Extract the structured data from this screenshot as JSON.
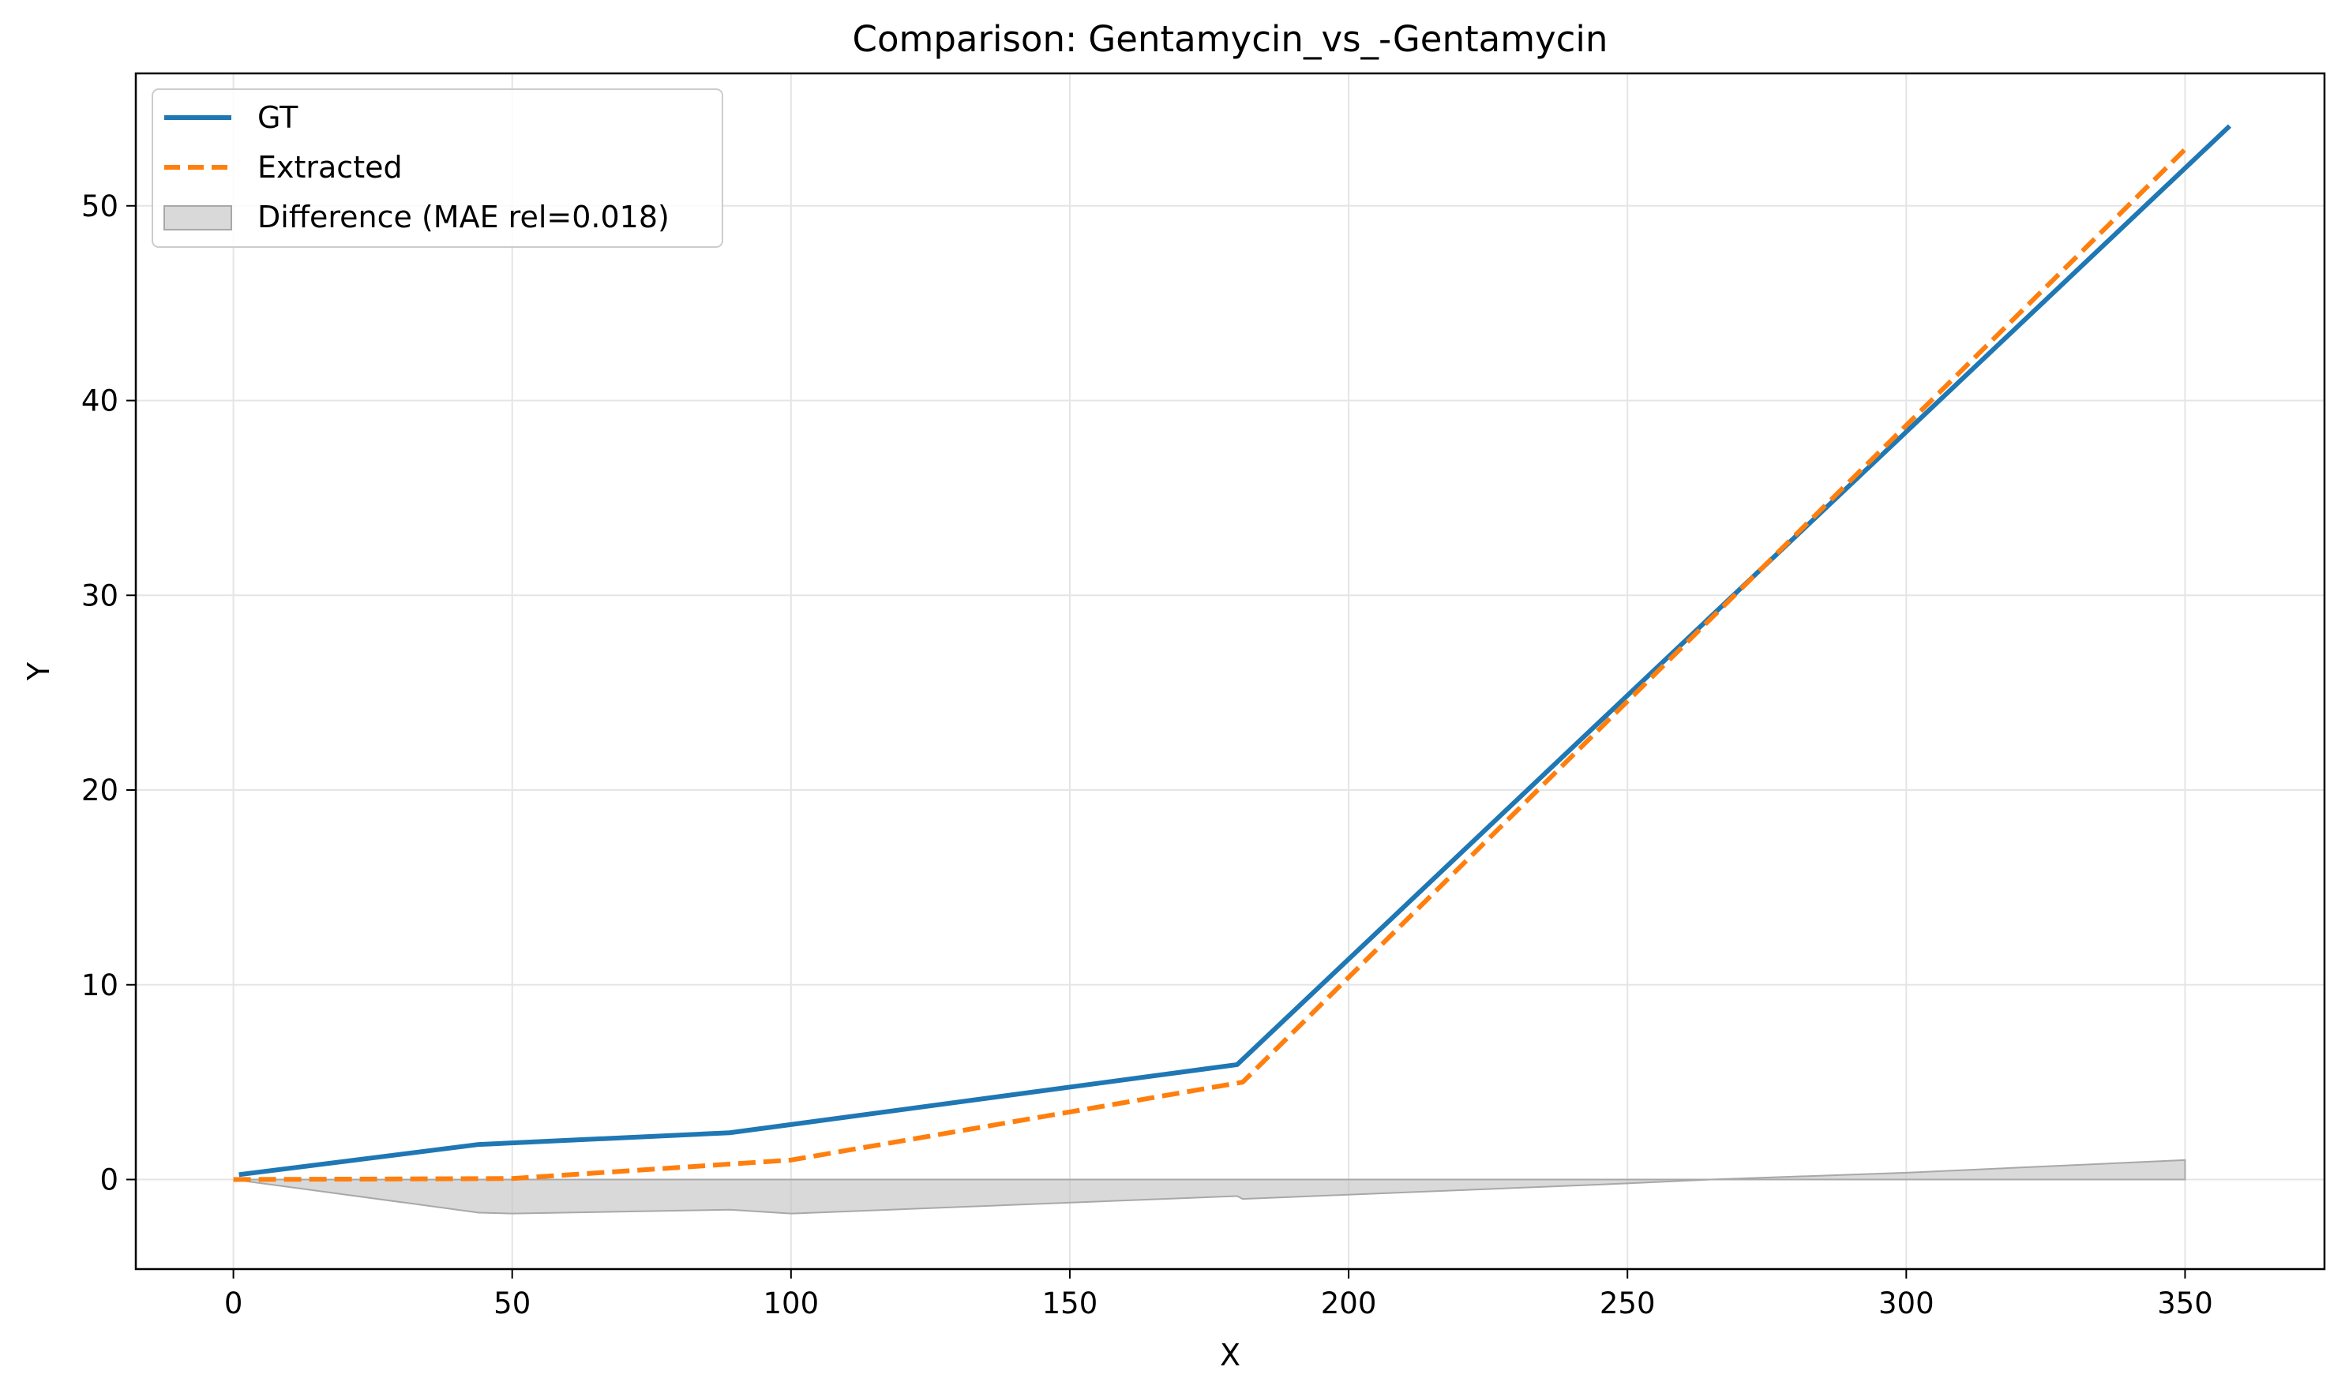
{
  "chart_data": {
    "type": "line",
    "title": "Comparison: Gentamycin_vs_-Gentamycin",
    "xlabel": "X",
    "ylabel": "Y",
    "xlim": [
      -17.5,
      375
    ],
    "ylim": [
      -4.6,
      56.8
    ],
    "xticks": [
      0,
      50,
      100,
      150,
      200,
      250,
      300,
      350
    ],
    "yticks": [
      0,
      10,
      20,
      30,
      40,
      50
    ],
    "grid": true,
    "legend_position": "upper left",
    "series": [
      {
        "name": "GT",
        "color": "#1f77b4",
        "style": "solid",
        "x": [
          1,
          44,
          89,
          180,
          358
        ],
        "y": [
          0.25,
          1.8,
          2.4,
          5.9,
          54.1
        ]
      },
      {
        "name": "Extracted",
        "color": "#ff7f0e",
        "style": "dashed",
        "x": [
          0,
          50,
          100,
          181,
          350
        ],
        "y": [
          0.0,
          0.05,
          1.0,
          5.0,
          52.9
        ]
      }
    ],
    "difference": {
      "name": "Difference (MAE rel=0.018)",
      "color": "#bfbfbf",
      "x": [
        0,
        44,
        50,
        89,
        100,
        180,
        181,
        250,
        265,
        300,
        350
      ],
      "y": [
        0,
        -1.7,
        -1.75,
        -1.55,
        -1.75,
        -0.85,
        -1.0,
        -0.2,
        0,
        0.35,
        1.0
      ]
    }
  }
}
